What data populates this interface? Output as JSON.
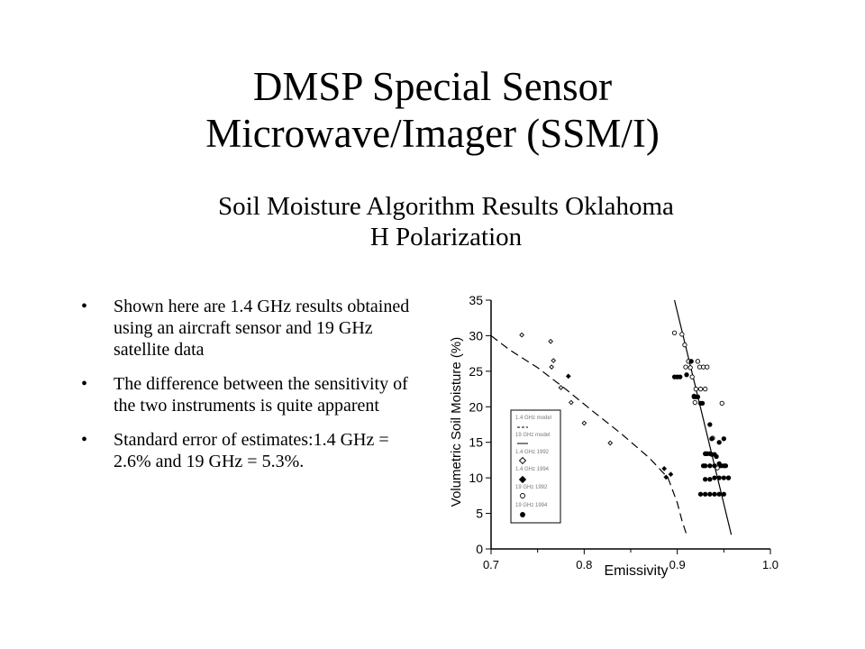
{
  "title_lines": [
    "DMSP Special Sensor",
    "Microwave/Imager (SSM/I)"
  ],
  "subtitle_lines": [
    "Soil Moisture Algorithm Results Oklahoma",
    "H Polarization"
  ],
  "bullets": [
    "Shown here are 1.4 GHz results obtained using an aircraft sensor and 19 GHz satellite data",
    "The difference between the sensitivity of the two instruments is quite apparent",
    "Standard error of estimates:1.4 GHz = 2.6% and 19 GHz = 5.3%."
  ],
  "bullet_glyph": "•",
  "chart_data": {
    "type": "scatter",
    "xlabel": "Emissivity",
    "ylabel": "Volumetric Soil Moisture (%)",
    "xlim": [
      0.7,
      1.0
    ],
    "ylim": [
      0,
      35
    ],
    "x_ticks": [
      "0.7",
      "0.8",
      "0.9",
      "1.0"
    ],
    "y_ticks": [
      "0",
      "5",
      "10",
      "15",
      "20",
      "25",
      "30",
      "35"
    ],
    "grid": false,
    "legend_position": "left",
    "legend": [
      "1.4 GHz model",
      "19 GHz model",
      "1.4 GHz 1992",
      "1.4 GHz 1994",
      "19 GHz 1992",
      "19 GHz 1994"
    ],
    "lines": [
      {
        "name": "1.4 GHz model",
        "style": "dashed",
        "x": [
          0.7,
          0.72,
          0.75,
          0.78,
          0.81,
          0.84,
          0.87,
          0.89,
          0.9,
          0.905,
          0.91
        ],
        "y": [
          30,
          28,
          25.5,
          22.5,
          19.3,
          16.2,
          12.8,
          10,
          6.5,
          4,
          2
        ]
      },
      {
        "name": "19 GHz model",
        "style": "solid",
        "x": [
          0.897,
          0.958
        ],
        "y": [
          35,
          2
        ]
      }
    ],
    "series": [
      {
        "name": "1.4 GHz 1992",
        "marker": "open-diamond",
        "x": [
          0.733,
          0.764,
          0.765,
          0.767,
          0.775,
          0.786,
          0.8,
          0.828
        ],
        "y": [
          30.1,
          29.2,
          25.6,
          26.5,
          22.7,
          20.6,
          17.7,
          14.9
        ]
      },
      {
        "name": "1.4 GHz 1994",
        "marker": "filled-diamond",
        "x": [
          0.783,
          0.886,
          0.888,
          0.893
        ],
        "y": [
          24.3,
          11.3,
          10.1,
          10.5
        ]
      },
      {
        "name": "19 GHz 1992",
        "marker": "open-circle",
        "x": [
          0.897,
          0.905,
          0.908,
          0.909,
          0.912,
          0.914,
          0.916,
          0.918,
          0.919,
          0.92,
          0.922,
          0.924,
          0.925,
          0.928,
          0.93,
          0.932,
          0.938,
          0.943,
          0.948
        ],
        "y": [
          30.4,
          30.2,
          28.7,
          25.6,
          26.4,
          25.5,
          24.2,
          21.5,
          20.6,
          22.5,
          26.4,
          25.6,
          22.5,
          25.6,
          22.5,
          25.6,
          15.6,
          11.4,
          20.5
        ]
      },
      {
        "name": "19 GHz 1994",
        "marker": "filled-circle",
        "x": [
          0.897,
          0.9,
          0.903,
          0.91,
          0.915,
          0.918,
          0.92,
          0.922,
          0.925,
          0.927,
          0.93,
          0.932,
          0.935,
          0.937,
          0.94,
          0.942,
          0.945,
          0.947,
          0.95,
          0.952,
          0.955,
          0.93,
          0.935,
          0.94,
          0.945,
          0.95,
          0.925,
          0.93,
          0.935,
          0.94,
          0.945,
          0.95,
          0.955,
          0.93,
          0.935,
          0.94,
          0.945,
          0.95,
          0.928,
          0.935,
          0.937
        ],
        "y": [
          24.2,
          24.2,
          24.2,
          24.5,
          26.4,
          21.4,
          21.4,
          21.4,
          20.5,
          20.5,
          13.4,
          13.4,
          13.4,
          13.3,
          13.3,
          13.0,
          12.0,
          11.7,
          11.7,
          11.7,
          10.0,
          9.8,
          9.8,
          10.0,
          10.0,
          10.0,
          7.7,
          7.7,
          7.7,
          7.7,
          7.7,
          7.7,
          10.0,
          11.7,
          11.7,
          11.7,
          15.0,
          15.5,
          11.7,
          17.5,
          15.5
        ]
      }
    ]
  }
}
